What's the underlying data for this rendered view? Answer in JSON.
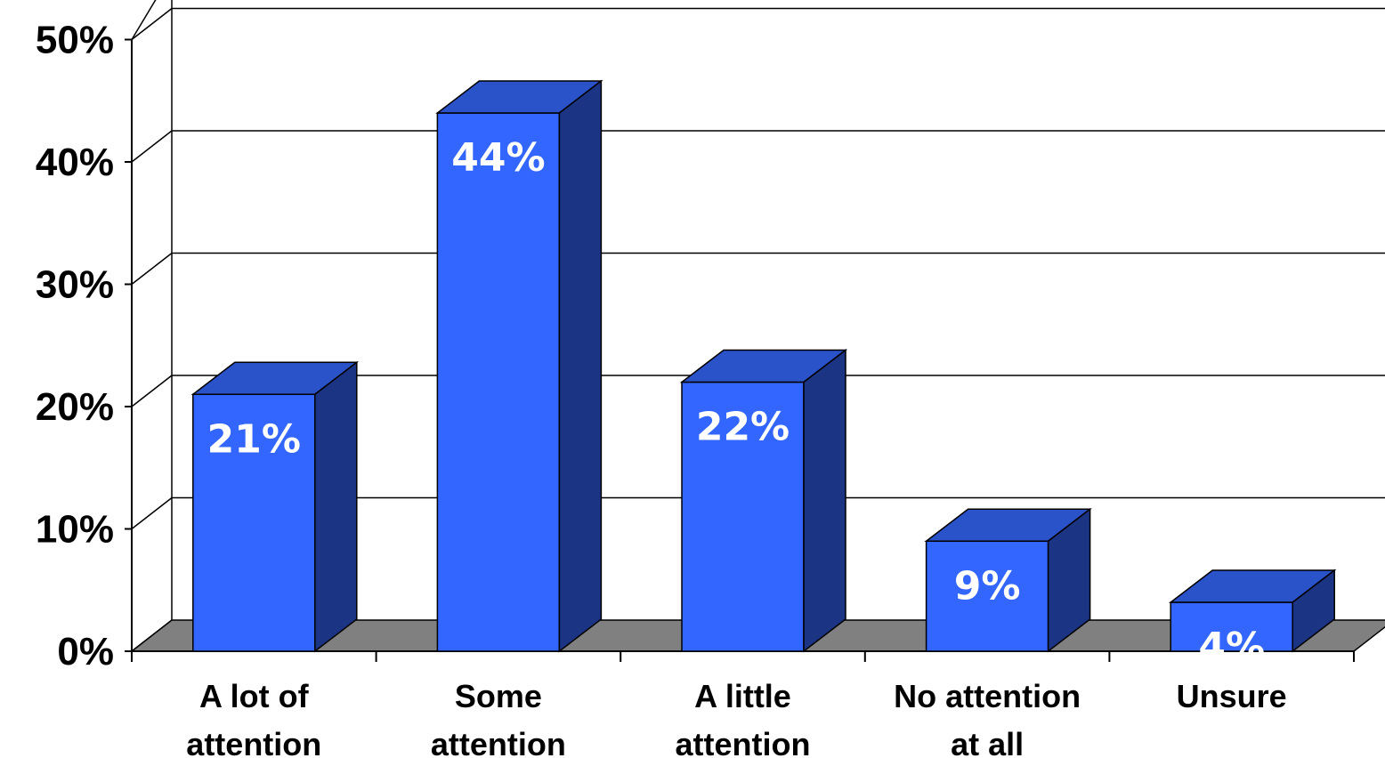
{
  "chart_data": {
    "type": "bar",
    "style": "3d-column",
    "categories": [
      [
        "A lot of",
        "attention"
      ],
      [
        "Some",
        "attention"
      ],
      [
        "A little",
        "attention"
      ],
      [
        "No attention",
        "at all"
      ],
      [
        "Unsure"
      ]
    ],
    "values": [
      21,
      44,
      22,
      9,
      4
    ],
    "data_labels": [
      "21%",
      "44%",
      "22%",
      "9%",
      "4%"
    ],
    "ylim": [
      0,
      50
    ],
    "yticks": [
      0,
      10,
      20,
      30,
      40,
      50
    ],
    "ytick_labels": [
      "0%",
      "10%",
      "20%",
      "30%",
      "40%",
      "50%"
    ],
    "grid": true,
    "legend": "none",
    "colors": {
      "bar_front": "#3366ff",
      "bar_top": "#2a52c9",
      "bar_side": "#1c3484",
      "floor": "#808080",
      "gridline": "#000000"
    }
  }
}
